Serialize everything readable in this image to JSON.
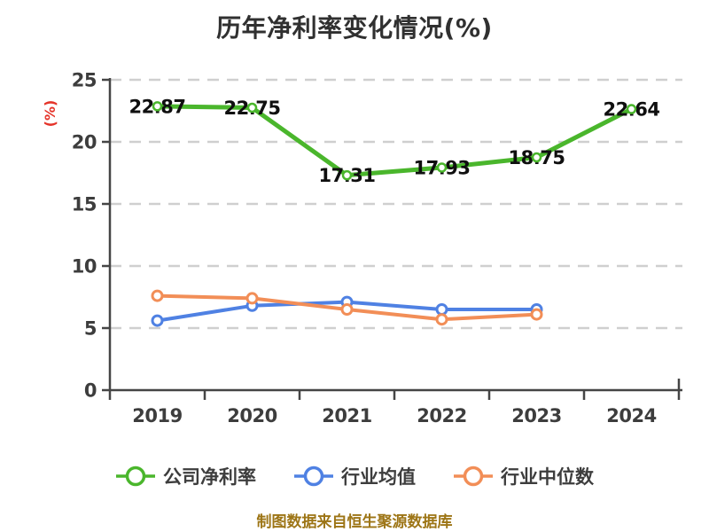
{
  "chart_data": {
    "type": "line",
    "title": "历年净利率变化情况(%)",
    "ylabel": "(%)",
    "ylabel_color": "#e5342a",
    "categories": [
      "2019",
      "2020",
      "2021",
      "2022",
      "2023",
      "2024"
    ],
    "series": [
      {
        "key": "company-net-margin",
        "name": "公司净利率",
        "color": "#4ab62c",
        "values": [
          22.87,
          22.75,
          17.31,
          17.93,
          18.75,
          22.64
        ],
        "show_labels": true
      },
      {
        "key": "industry-mean",
        "name": "行业均值",
        "color": "#4f81e3",
        "values": [
          5.6,
          6.8,
          7.1,
          6.5,
          6.5,
          null
        ],
        "show_labels": false
      },
      {
        "key": "industry-median",
        "name": "行业中位数",
        "color": "#f28e57",
        "values": [
          7.6,
          7.4,
          6.5,
          5.7,
          6.1,
          null
        ],
        "show_labels": false
      }
    ],
    "ylim": [
      0,
      25
    ],
    "yticks": [
      0,
      5,
      10,
      15,
      20,
      25
    ],
    "grid": "horizontal-dashed",
    "legend_position": "bottom"
  },
  "footer": {
    "text": "制图数据来自恒生聚源数据库",
    "color": "#9d7516"
  }
}
